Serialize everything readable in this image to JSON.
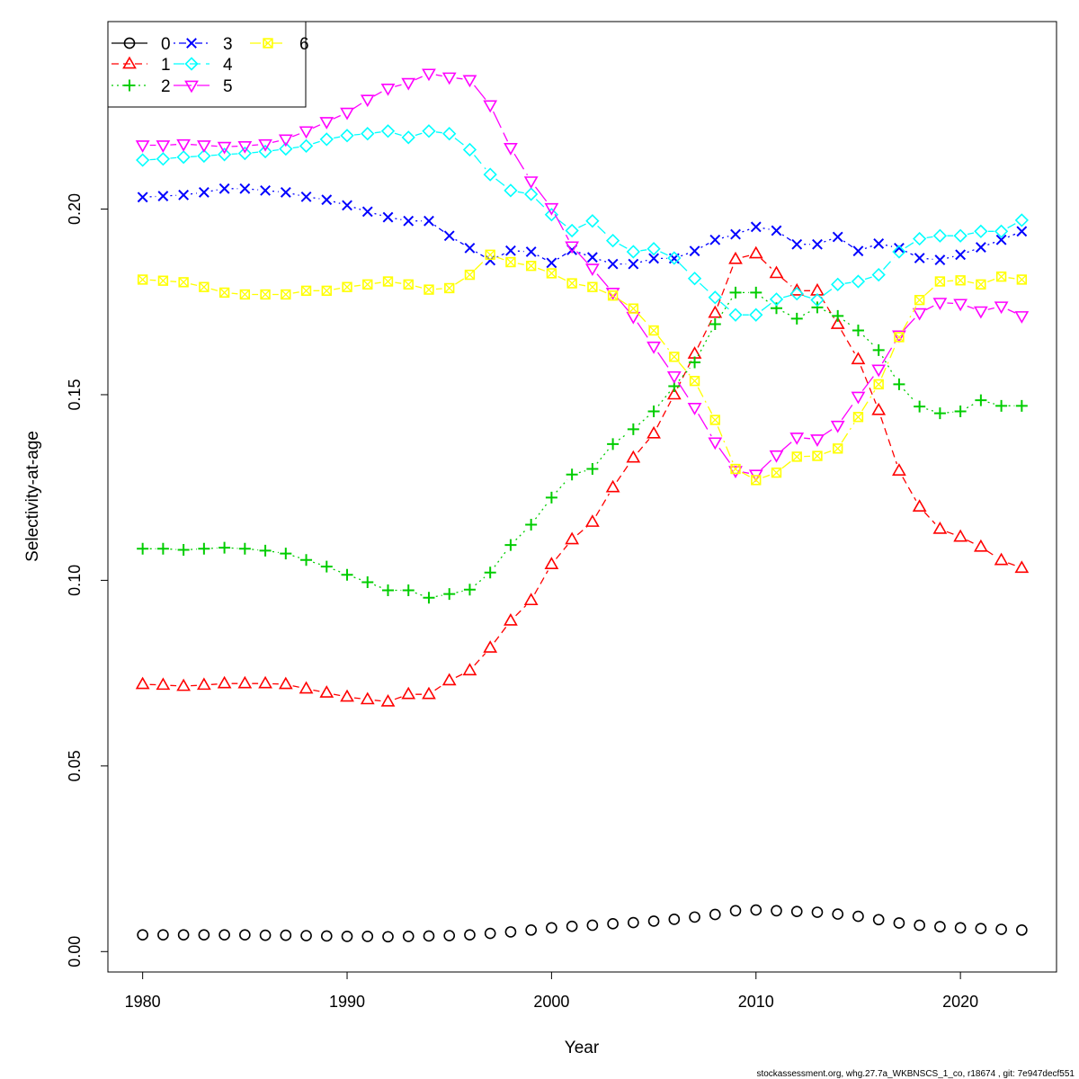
{
  "chart_data": {
    "type": "line",
    "title": "",
    "xlabel": "Year",
    "ylabel": "Selectivity-at-age",
    "xlim": [
      1978.3,
      2024.7
    ],
    "ylim": [
      -0.0055,
      0.2505
    ],
    "xticks": [
      1980,
      1990,
      2000,
      2010,
      2020
    ],
    "yticks": [
      0.0,
      0.05,
      0.1,
      0.15,
      0.2
    ],
    "ytick_labels": [
      "0.00",
      "0.05",
      "0.10",
      "0.15",
      "0.20"
    ],
    "legend_position": "top-left",
    "grid": false,
    "x": [
      1980,
      1981,
      1982,
      1983,
      1984,
      1985,
      1986,
      1987,
      1988,
      1989,
      1990,
      1991,
      1992,
      1993,
      1994,
      1995,
      1996,
      1997,
      1998,
      1999,
      2000,
      2001,
      2002,
      2003,
      2004,
      2005,
      2006,
      2007,
      2008,
      2009,
      2010,
      2011,
      2012,
      2013,
      2014,
      2015,
      2016,
      2017,
      2018,
      2019,
      2020,
      2021,
      2022,
      2023
    ],
    "series": [
      {
        "name": "0",
        "color": "#000000",
        "marker": "circle",
        "dash": "none",
        "values": [
          0.0045,
          0.0045,
          0.0045,
          0.0045,
          0.0045,
          0.0045,
          0.0044,
          0.0044,
          0.0043,
          0.0042,
          0.0041,
          0.0041,
          0.004,
          0.0041,
          0.0042,
          0.0043,
          0.0045,
          0.0049,
          0.0053,
          0.0058,
          0.0064,
          0.0068,
          0.0071,
          0.0075,
          0.0078,
          0.0082,
          0.0087,
          0.0093,
          0.01,
          0.011,
          0.0112,
          0.011,
          0.0108,
          0.0106,
          0.0101,
          0.0095,
          0.0086,
          0.0077,
          0.0071,
          0.0067,
          0.0064,
          0.0062,
          0.006,
          0.0058
        ]
      },
      {
        "name": "1",
        "color": "#ff0000",
        "marker": "triangle-up",
        "dash": "8,5",
        "values": [
          0.072,
          0.0718,
          0.0715,
          0.0718,
          0.0722,
          0.0722,
          0.0722,
          0.072,
          0.0708,
          0.0697,
          0.0686,
          0.0679,
          0.0673,
          0.0693,
          0.0693,
          0.073,
          0.0757,
          0.0818,
          0.0891,
          0.0946,
          0.1043,
          0.111,
          0.1157,
          0.125,
          0.133,
          0.1395,
          0.15,
          0.161,
          0.172,
          0.1865,
          0.188,
          0.1827,
          0.178,
          0.178,
          0.169,
          0.1595,
          0.1458,
          0.1295,
          0.1198,
          0.1138,
          0.1117,
          0.109,
          0.1054,
          0.1033
        ]
      },
      {
        "name": "2",
        "color": "#00cd00",
        "marker": "plus",
        "dash": "2,4",
        "values": [
          0.1085,
          0.1085,
          0.1082,
          0.1085,
          0.1088,
          0.1085,
          0.108,
          0.1072,
          0.1055,
          0.1037,
          0.1015,
          0.0995,
          0.0973,
          0.0973,
          0.0953,
          0.0963,
          0.0975,
          0.1021,
          0.1095,
          0.115,
          0.1223,
          0.1285,
          0.13,
          0.1367,
          0.1407,
          0.1455,
          0.1523,
          0.1587,
          0.169,
          0.1775,
          0.1775,
          0.1733,
          0.1705,
          0.1735,
          0.1712,
          0.1673,
          0.162,
          0.1528,
          0.1468,
          0.145,
          0.1455,
          0.1485,
          0.147,
          0.147
        ]
      },
      {
        "name": "3",
        "color": "#0000ff",
        "marker": "cross",
        "dash": "2,4,8,4",
        "values": [
          0.2032,
          0.2035,
          0.2038,
          0.2045,
          0.2055,
          0.2055,
          0.205,
          0.2045,
          0.2033,
          0.2025,
          0.201,
          0.1993,
          0.1978,
          0.1968,
          0.1968,
          0.1928,
          0.1895,
          0.1862,
          0.1888,
          0.1885,
          0.1855,
          0.189,
          0.187,
          0.1852,
          0.1852,
          0.1867,
          0.1867,
          0.1887,
          0.1917,
          0.1932,
          0.1952,
          0.1942,
          0.1905,
          0.1905,
          0.1925,
          0.1887,
          0.1907,
          0.1895,
          0.1868,
          0.1863,
          0.1877,
          0.1897,
          0.1917,
          0.194
        ]
      },
      {
        "name": "4",
        "color": "#00ffff",
        "marker": "diamond",
        "dash": "12,6",
        "values": [
          0.2132,
          0.2135,
          0.214,
          0.2143,
          0.2147,
          0.215,
          0.2155,
          0.2162,
          0.217,
          0.2188,
          0.2198,
          0.2203,
          0.221,
          0.2193,
          0.221,
          0.2203,
          0.216,
          0.2093,
          0.205,
          0.204,
          0.1985,
          0.1942,
          0.1968,
          0.1915,
          0.1885,
          0.1893,
          0.1868,
          0.1813,
          0.1762,
          0.1715,
          0.1715,
          0.1757,
          0.1772,
          0.1755,
          0.1797,
          0.1805,
          0.1823,
          0.1885,
          0.192,
          0.1928,
          0.1928,
          0.194,
          0.194,
          0.197
        ]
      },
      {
        "name": "5",
        "color": "#ff00ff",
        "marker": "triangle-down",
        "dash": "20,6",
        "values": [
          0.2172,
          0.2172,
          0.2175,
          0.2172,
          0.2168,
          0.217,
          0.2175,
          0.2188,
          0.221,
          0.2235,
          0.226,
          0.2295,
          0.2325,
          0.234,
          0.2365,
          0.2355,
          0.2348,
          0.228,
          0.2165,
          0.2075,
          0.2003,
          0.19,
          0.184,
          0.1775,
          0.171,
          0.163,
          0.155,
          0.1465,
          0.1372,
          0.1295,
          0.1285,
          0.1337,
          0.1385,
          0.138,
          0.1417,
          0.1495,
          0.1568,
          0.166,
          0.172,
          0.1748,
          0.1745,
          0.1725,
          0.1738,
          0.1712
        ]
      },
      {
        "name": "6",
        "color": "#ffff00",
        "marker": "square-x",
        "dash": "12,5,2,5",
        "values": [
          0.181,
          0.1807,
          0.1803,
          0.179,
          0.1775,
          0.177,
          0.177,
          0.177,
          0.178,
          0.178,
          0.179,
          0.1797,
          0.1805,
          0.1797,
          0.1783,
          0.1787,
          0.1823,
          0.1877,
          0.1857,
          0.1847,
          0.1827,
          0.18,
          0.179,
          0.1767,
          0.1732,
          0.1673,
          0.1602,
          0.1537,
          0.1432,
          0.13,
          0.127,
          0.129,
          0.1333,
          0.1335,
          0.1355,
          0.144,
          0.1528,
          0.1655,
          0.1755,
          0.1805,
          0.1808,
          0.1797,
          0.1818,
          0.181
        ]
      }
    ]
  },
  "footer": {
    "text": "stockassessment.org, whg.27.7a_WKBNSCS_1_co, r18674 , git: 7e947decf551"
  }
}
